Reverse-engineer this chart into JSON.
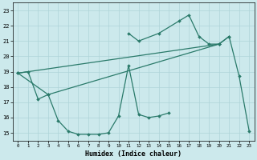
{
  "xlabel": "Humidex (Indice chaleur)",
  "xlim": [
    -0.5,
    23.5
  ],
  "ylim": [
    14.5,
    23.5
  ],
  "xticks": [
    0,
    1,
    2,
    3,
    4,
    5,
    6,
    7,
    8,
    9,
    10,
    11,
    12,
    13,
    14,
    15,
    16,
    17,
    18,
    19,
    20,
    21,
    22,
    23
  ],
  "yticks": [
    15,
    16,
    17,
    18,
    19,
    20,
    21,
    22,
    23
  ],
  "bg_color": "#cce9ec",
  "grid_color": "#aed4d8",
  "line_color": "#2a7a6a",
  "curve1": {
    "x": [
      0,
      1,
      2,
      3,
      4,
      5,
      6,
      7,
      8,
      9,
      10,
      11,
      12,
      13,
      14,
      15
    ],
    "y": [
      18.9,
      19.0,
      17.2,
      17.5,
      15.8,
      15.1,
      14.9,
      14.9,
      14.9,
      15.0,
      16.1,
      19.4,
      16.2,
      16.0,
      16.1,
      16.3
    ]
  },
  "curve2": {
    "x": [
      11,
      12,
      14,
      16,
      17,
      18,
      19,
      20,
      21
    ],
    "y": [
      21.5,
      21.0,
      21.5,
      22.3,
      22.7,
      21.3,
      20.8,
      20.8,
      21.3
    ]
  },
  "curve3": {
    "x": [
      0,
      3,
      20,
      21,
      22,
      23
    ],
    "y": [
      18.9,
      17.5,
      20.8,
      21.3,
      18.7,
      15.1
    ]
  },
  "curve4": {
    "x": [
      0,
      20
    ],
    "y": [
      18.9,
      20.8
    ]
  }
}
